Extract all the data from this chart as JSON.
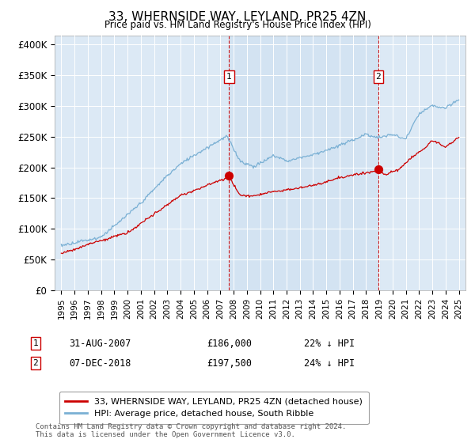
{
  "title": "33, WHERNSIDE WAY, LEYLAND, PR25 4ZN",
  "subtitle": "Price paid vs. HM Land Registry's House Price Index (HPI)",
  "legend_line1": "33, WHERNSIDE WAY, LEYLAND, PR25 4ZN (detached house)",
  "legend_line2": "HPI: Average price, detached house, South Ribble",
  "annotation1": {
    "num": "1",
    "date": "31-AUG-2007",
    "price": "£186,000",
    "hpi": "22% ↓ HPI",
    "x_year": 2007.67,
    "y_val": 186000
  },
  "annotation2": {
    "num": "2",
    "date": "07-DEC-2018",
    "price": "£197,500",
    "hpi": "24% ↓ HPI",
    "x_year": 2018.92,
    "y_val": 197500
  },
  "footer": "Contains HM Land Registry data © Crown copyright and database right 2024.\nThis data is licensed under the Open Government Licence v3.0.",
  "background_color": "#ffffff",
  "plot_bg_color": "#dce9f5",
  "hpi_color": "#7ab0d4",
  "price_color": "#cc0000",
  "highlight_color": "#ccdff0",
  "yticks": [
    0,
    50000,
    100000,
    150000,
    200000,
    250000,
    300000,
    350000,
    400000
  ],
  "ylabels": [
    "£0",
    "£50K",
    "£100K",
    "£150K",
    "£200K",
    "£250K",
    "£300K",
    "£350K",
    "£400K"
  ],
  "ylim": [
    0,
    415000
  ],
  "xlim": [
    1994.5,
    2025.5
  ]
}
